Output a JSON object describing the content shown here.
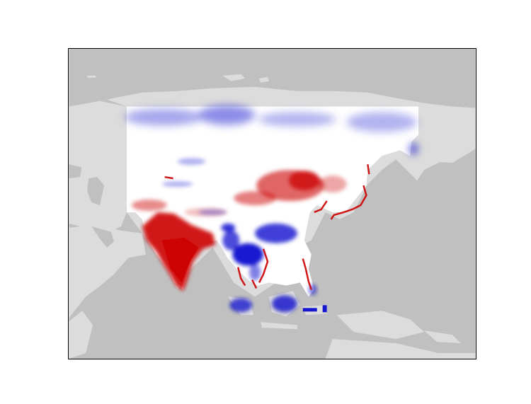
{
  "map": {
    "title": "",
    "colors": {
      "ocean": "#c0c0c0",
      "land": "#dcdcdc",
      "neutral": "#ffffff",
      "positive": "#cc0000",
      "negative": "#0000cc",
      "frame": "#000000"
    },
    "legend": null,
    "colorbar": null
  }
}
